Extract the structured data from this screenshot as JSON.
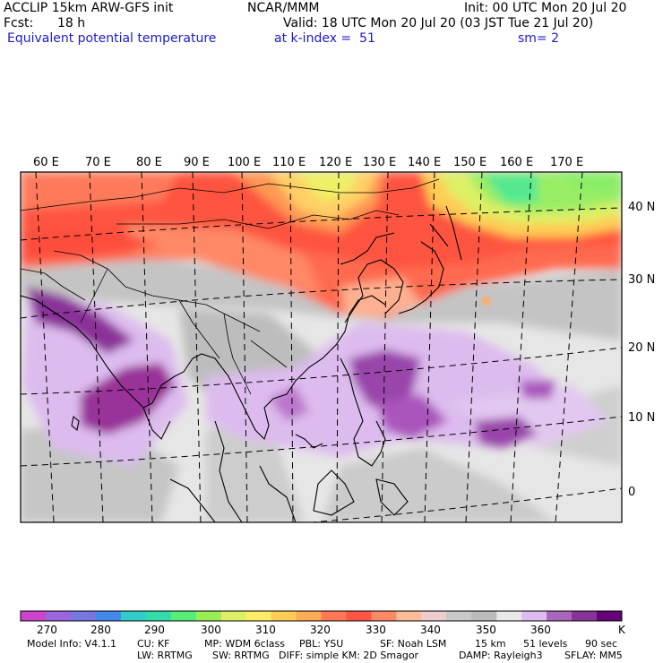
{
  "header": {
    "model_line": "ACCLIP 15km ARW-GFS init",
    "org": "NCAR/MMM",
    "init": "Init: 00 UTC Mon 20 Jul 20",
    "fcst_label": "Fcst:",
    "fcst_value": "18 h",
    "valid": "Valid: 18 UTC Mon 20 Jul 20 (03 JST Tue 21 Jul 20)",
    "field": "Equivalent potential temperature",
    "level": "at k-index =  51",
    "smooth": "sm= 2"
  },
  "map": {
    "lon_labels": [
      "60 E",
      "70 E",
      "80 E",
      "90 E",
      "100 E",
      "110 E",
      "120 E",
      "130 E",
      "140 E",
      "150 E",
      "160 E",
      "170 E"
    ],
    "lat_labels": [
      "40 N",
      "30 N",
      "20 N",
      "10 N",
      "0"
    ]
  },
  "legend": {
    "unit": "K",
    "tick_labels": [
      "270",
      "280",
      "290",
      "300",
      "310",
      "320",
      "330",
      "340",
      "350",
      "360"
    ],
    "colors": [
      "#cc44cc",
      "#9966dd",
      "#7777dd",
      "#4488ee",
      "#33cccc",
      "#33ddaa",
      "#55ee77",
      "#99ee55",
      "#ddf066",
      "#ffee66",
      "#ffcc55",
      "#ffaa55",
      "#ff7755",
      "#ff5544",
      "#ff8866",
      "#ffbb99",
      "#eecccc",
      "#c8c8c8",
      "#bbbbbb",
      "#e8e8e8",
      "#ddbbee",
      "#aa66bb",
      "#883399",
      "#660077"
    ]
  },
  "footer": {
    "line1": [
      "Model Info: V4.1.1",
      "CU: KF",
      "MP: WDM 6class",
      "PBL: YSU",
      "SF: Noah LSM",
      "15 km",
      "51 levels",
      "90 sec"
    ],
    "line2": [
      "LW: RRTMG",
      "SW: RRTMG",
      "DIFF: simple KM: 2D Smagor",
      "DAMP: Rayleigh3",
      "SFLAY: MM5"
    ]
  }
}
